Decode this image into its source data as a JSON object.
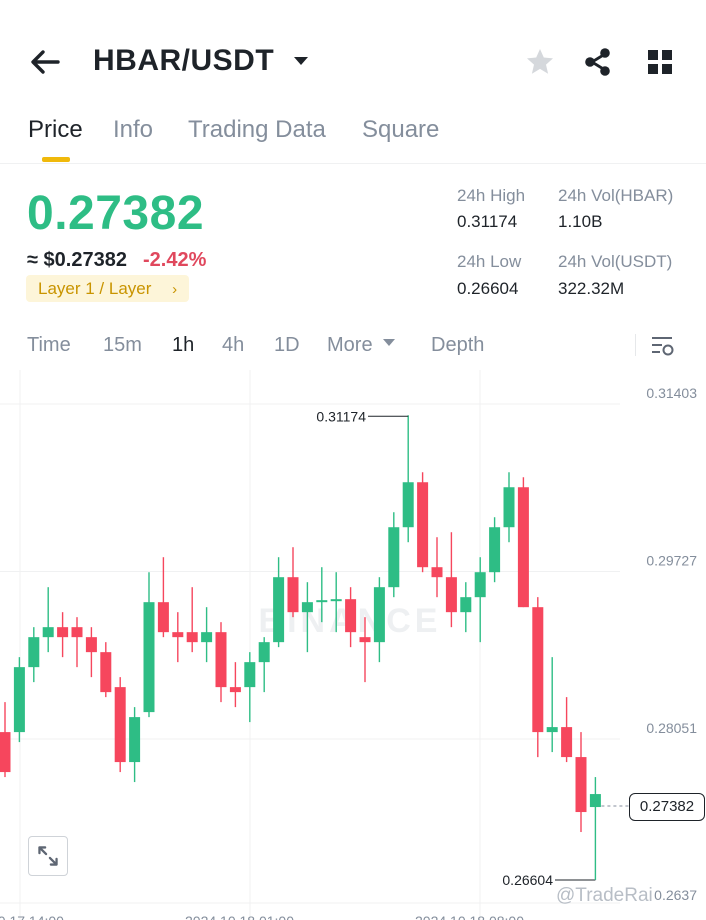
{
  "header": {
    "title": "HBAR/USDT",
    "icons": {
      "back": "back-arrow-icon",
      "caret": "caret-down-icon",
      "favorite": "star-icon",
      "share": "share-icon",
      "menu": "grid-icon"
    }
  },
  "tabs": [
    {
      "label": "Price",
      "active": true
    },
    {
      "label": "Info",
      "active": false
    },
    {
      "label": "Trading Data",
      "active": false
    },
    {
      "label": "Square",
      "active": false
    }
  ],
  "ticker": {
    "last_price": "0.27382",
    "usd_price": "≈ $0.27382",
    "change": "-2.42%",
    "tag": "Layer 1 / Layer",
    "tag_arrow": "›",
    "high_label": "24h High",
    "high_value": "0.31174",
    "low_label": "24h Low",
    "low_value": "0.26604",
    "vol_base_label": "24h Vol(HBAR)",
    "vol_base_value": "1.10B",
    "vol_quote_label": "24h Vol(USDT)",
    "vol_quote_value": "322.32M"
  },
  "intervals": {
    "items": [
      {
        "label": "Time",
        "active": false
      },
      {
        "label": "15m",
        "active": false
      },
      {
        "label": "1h",
        "active": true
      },
      {
        "label": "4h",
        "active": false
      },
      {
        "label": "1D",
        "active": false
      },
      {
        "label": "More",
        "active": false
      },
      {
        "label": "Depth",
        "active": false
      }
    ],
    "settings_icon": "chart-settings-icon"
  },
  "chart_data": {
    "type": "candlestick",
    "y_axis_labels": [
      "0.31403",
      "0.29727",
      "0.28051"
    ],
    "y_axis_partial_label": "0.2637",
    "x_axis_partial_labels": [
      "10 17 14:00",
      "2024 10 18 01:00",
      "2024 10 18 08:00"
    ],
    "ylim": [
      0.2637,
      0.31403
    ],
    "high_marker": "0.31174",
    "low_marker": "0.26604",
    "current_price": "0.27382",
    "watermark": "BINANCE",
    "credit": "@TradeRai",
    "colors": {
      "up": "#2ebd85",
      "down": "#f6465d",
      "grid": "#f0f1f2",
      "axis_text": "#848e9c"
    },
    "candles": [
      {
        "o": 0.28,
        "h": 0.283,
        "l": 0.2755,
        "c": 0.276
      },
      {
        "o": 0.28,
        "h": 0.2875,
        "l": 0.279,
        "c": 0.2865
      },
      {
        "o": 0.2865,
        "h": 0.2905,
        "l": 0.285,
        "c": 0.2895
      },
      {
        "o": 0.2895,
        "h": 0.2945,
        "l": 0.288,
        "c": 0.2905
      },
      {
        "o": 0.2905,
        "h": 0.292,
        "l": 0.2875,
        "c": 0.2895
      },
      {
        "o": 0.2905,
        "h": 0.2915,
        "l": 0.2865,
        "c": 0.2895
      },
      {
        "o": 0.2895,
        "h": 0.2905,
        "l": 0.2855,
        "c": 0.288
      },
      {
        "o": 0.288,
        "h": 0.289,
        "l": 0.2835,
        "c": 0.284
      },
      {
        "o": 0.2845,
        "h": 0.2855,
        "l": 0.276,
        "c": 0.277
      },
      {
        "o": 0.277,
        "h": 0.2825,
        "l": 0.275,
        "c": 0.2815
      },
      {
        "o": 0.282,
        "h": 0.296,
        "l": 0.2815,
        "c": 0.293
      },
      {
        "o": 0.293,
        "h": 0.2975,
        "l": 0.2895,
        "c": 0.29
      },
      {
        "o": 0.29,
        "h": 0.292,
        "l": 0.287,
        "c": 0.2895
      },
      {
        "o": 0.29,
        "h": 0.2945,
        "l": 0.288,
        "c": 0.289
      },
      {
        "o": 0.289,
        "h": 0.2925,
        "l": 0.287,
        "c": 0.29
      },
      {
        "o": 0.29,
        "h": 0.291,
        "l": 0.283,
        "c": 0.2845
      },
      {
        "o": 0.2845,
        "h": 0.287,
        "l": 0.2825,
        "c": 0.284
      },
      {
        "o": 0.2845,
        "h": 0.288,
        "l": 0.281,
        "c": 0.287
      },
      {
        "o": 0.287,
        "h": 0.2895,
        "l": 0.284,
        "c": 0.289
      },
      {
        "o": 0.289,
        "h": 0.2975,
        "l": 0.2885,
        "c": 0.2955
      },
      {
        "o": 0.2955,
        "h": 0.2985,
        "l": 0.2915,
        "c": 0.292
      },
      {
        "o": 0.292,
        "h": 0.295,
        "l": 0.288,
        "c": 0.293
      },
      {
        "o": 0.293,
        "h": 0.2965,
        "l": 0.291,
        "c": 0.2932
      },
      {
        "o": 0.2932,
        "h": 0.296,
        "l": 0.29,
        "c": 0.2933
      },
      {
        "o": 0.2933,
        "h": 0.2945,
        "l": 0.2885,
        "c": 0.29
      },
      {
        "o": 0.2895,
        "h": 0.2915,
        "l": 0.285,
        "c": 0.289
      },
      {
        "o": 0.289,
        "h": 0.2955,
        "l": 0.287,
        "c": 0.2945
      },
      {
        "o": 0.2945,
        "h": 0.302,
        "l": 0.2935,
        "c": 0.3005
      },
      {
        "o": 0.3005,
        "h": 0.3117,
        "l": 0.299,
        "c": 0.305
      },
      {
        "o": 0.305,
        "h": 0.306,
        "l": 0.296,
        "c": 0.2965
      },
      {
        "o": 0.2965,
        "h": 0.2995,
        "l": 0.2935,
        "c": 0.2955
      },
      {
        "o": 0.2955,
        "h": 0.3,
        "l": 0.2905,
        "c": 0.292
      },
      {
        "o": 0.292,
        "h": 0.295,
        "l": 0.29,
        "c": 0.2935
      },
      {
        "o": 0.2935,
        "h": 0.2975,
        "l": 0.289,
        "c": 0.296
      },
      {
        "o": 0.296,
        "h": 0.3015,
        "l": 0.295,
        "c": 0.3005
      },
      {
        "o": 0.3005,
        "h": 0.306,
        "l": 0.299,
        "c": 0.3045
      },
      {
        "o": 0.3045,
        "h": 0.3055,
        "l": 0.2925,
        "c": 0.2925
      },
      {
        "o": 0.2925,
        "h": 0.2935,
        "l": 0.2775,
        "c": 0.28
      },
      {
        "o": 0.28,
        "h": 0.2875,
        "l": 0.278,
        "c": 0.2805
      },
      {
        "o": 0.2805,
        "h": 0.2835,
        "l": 0.277,
        "c": 0.2775
      },
      {
        "o": 0.2775,
        "h": 0.28,
        "l": 0.27,
        "c": 0.272
      },
      {
        "o": 0.2725,
        "h": 0.2755,
        "l": 0.266,
        "c": 0.2738
      }
    ]
  }
}
